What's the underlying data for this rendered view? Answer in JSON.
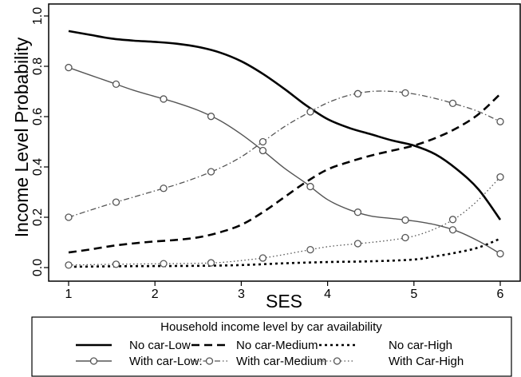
{
  "chart_data": {
    "type": "line",
    "title": "",
    "xlabel": "SES",
    "ylabel": "Income Level Probability",
    "xlim": [
      1,
      6
    ],
    "ylim": [
      0,
      1
    ],
    "x_ticks": [
      1,
      2,
      3,
      4,
      5,
      6
    ],
    "y_ticks": [
      0.0,
      0.2,
      0.4,
      0.6,
      0.8,
      1.0
    ],
    "x_tick_labels": [
      "1",
      "2",
      "3",
      "4",
      "5",
      "6"
    ],
    "y_tick_labels": [
      "0.0",
      "0.2",
      "0.4",
      "0.6",
      "0.8",
      "1.0"
    ],
    "grid": false,
    "legend": {
      "title": "Household income level by car availability",
      "placement": "bottom",
      "rows": [
        [
          "No car-Low",
          "No car-Medium",
          "No car-High"
        ],
        [
          "With car-Low:",
          "With car-Medium",
          "With Car-High"
        ]
      ]
    },
    "series": [
      {
        "name": "No car-Low",
        "style": "solid-thick",
        "color": "#000000",
        "markers": false,
        "x": [
          1.0,
          1.25,
          1.5,
          1.75,
          2.0,
          2.25,
          2.5,
          2.75,
          3.0,
          3.25,
          3.5,
          3.75,
          4.0,
          4.25,
          4.5,
          4.75,
          5.0,
          5.25,
          5.5,
          5.75,
          6.0
        ],
        "y": [
          0.94,
          0.925,
          0.91,
          0.902,
          0.897,
          0.89,
          0.877,
          0.855,
          0.82,
          0.77,
          0.71,
          0.645,
          0.59,
          0.555,
          0.53,
          0.505,
          0.485,
          0.45,
          0.39,
          0.31,
          0.19
        ]
      },
      {
        "name": "No car-Medium",
        "style": "dashed-thick",
        "color": "#000000",
        "markers": false,
        "x": [
          1.0,
          1.25,
          1.5,
          1.75,
          2.0,
          2.25,
          2.5,
          2.75,
          3.0,
          3.25,
          3.5,
          3.75,
          4.0,
          4.25,
          4.5,
          4.75,
          5.0,
          5.25,
          5.5,
          5.75,
          6.0
        ],
        "y": [
          0.06,
          0.072,
          0.086,
          0.096,
          0.104,
          0.11,
          0.12,
          0.14,
          0.17,
          0.22,
          0.28,
          0.34,
          0.39,
          0.42,
          0.445,
          0.465,
          0.485,
          0.515,
          0.555,
          0.61,
          0.69
        ]
      },
      {
        "name": "No car-High",
        "style": "dotted-thick",
        "color": "#000000",
        "markers": false,
        "x": [
          1.0,
          1.5,
          2.0,
          2.5,
          3.0,
          3.5,
          4.0,
          4.5,
          5.0,
          5.25,
          5.5,
          5.75,
          6.0
        ],
        "y": [
          0.003,
          0.005,
          0.006,
          0.007,
          0.01,
          0.017,
          0.022,
          0.025,
          0.032,
          0.045,
          0.06,
          0.08,
          0.115
        ]
      },
      {
        "name": "With car-Low:",
        "style": "solid-thin",
        "color": "#555555",
        "markers": true,
        "marker_x": [
          1.0,
          1.55,
          2.1,
          2.65,
          3.25,
          3.8,
          4.35,
          4.9,
          5.45,
          6.0
        ],
        "x": [
          1.0,
          1.25,
          1.5,
          1.75,
          2.0,
          2.25,
          2.5,
          2.75,
          3.0,
          3.25,
          3.5,
          3.75,
          4.0,
          4.25,
          4.5,
          4.75,
          5.0,
          5.25,
          5.5,
          5.75,
          6.0
        ],
        "y": [
          0.795,
          0.765,
          0.735,
          0.705,
          0.68,
          0.655,
          0.625,
          0.585,
          0.53,
          0.465,
          0.395,
          0.335,
          0.27,
          0.23,
          0.205,
          0.195,
          0.185,
          0.17,
          0.145,
          0.105,
          0.055
        ]
      },
      {
        "name": "With car-Medium",
        "style": "dashdot-thin",
        "color": "#555555",
        "markers": true,
        "marker_x": [
          1.0,
          1.55,
          2.1,
          2.65,
          3.25,
          3.8,
          4.35,
          4.9,
          5.45,
          6.0
        ],
        "x": [
          1.0,
          1.25,
          1.5,
          1.75,
          2.0,
          2.25,
          2.5,
          2.75,
          3.0,
          3.25,
          3.5,
          3.75,
          4.0,
          4.25,
          4.5,
          4.75,
          5.0,
          5.25,
          5.5,
          5.75,
          6.0
        ],
        "y": [
          0.2,
          0.228,
          0.255,
          0.28,
          0.305,
          0.33,
          0.36,
          0.395,
          0.44,
          0.5,
          0.56,
          0.61,
          0.655,
          0.685,
          0.7,
          0.7,
          0.69,
          0.672,
          0.648,
          0.62,
          0.58
        ]
      },
      {
        "name": "With Car-High",
        "style": "dotted-thin",
        "color": "#555555",
        "markers": true,
        "marker_x": [
          1.0,
          1.55,
          2.1,
          2.65,
          3.25,
          3.8,
          4.35,
          4.9,
          5.45,
          6.0
        ],
        "x": [
          1.0,
          1.5,
          2.0,
          2.5,
          2.75,
          3.0,
          3.25,
          3.5,
          3.75,
          4.0,
          4.25,
          4.5,
          4.75,
          5.0,
          5.25,
          5.5,
          5.75,
          6.0
        ],
        "y": [
          0.01,
          0.013,
          0.015,
          0.017,
          0.02,
          0.028,
          0.038,
          0.052,
          0.068,
          0.083,
          0.092,
          0.1,
          0.11,
          0.125,
          0.155,
          0.2,
          0.27,
          0.36
        ]
      }
    ]
  }
}
